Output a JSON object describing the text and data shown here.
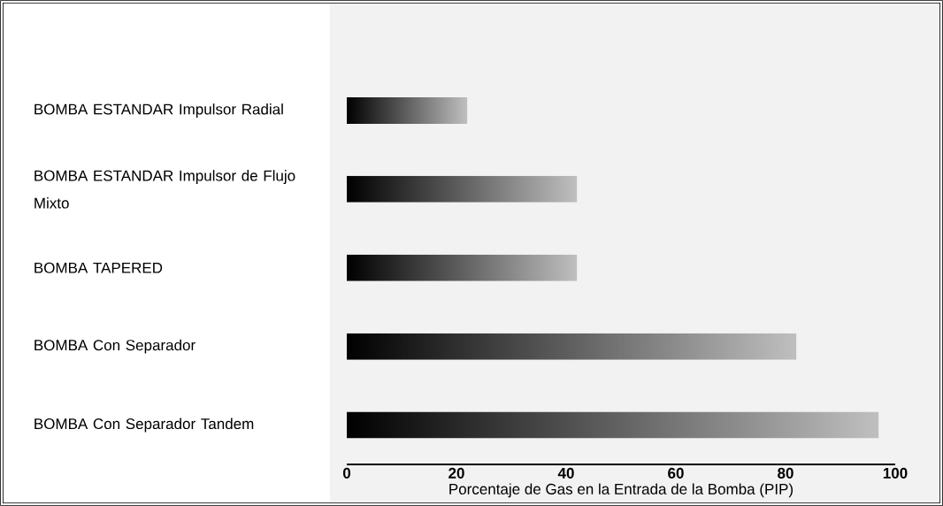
{
  "chart_data": {
    "type": "bar",
    "orientation": "horizontal",
    "categories": [
      "BOMBA ESTANDAR Impulsor Radial",
      "BOMBA ESTANDAR Impulsor de Flujo Mixto",
      "BOMBA TAPERED",
      "BOMBA Con Separador",
      "BOMBA Con Separador Tandem"
    ],
    "values": [
      22,
      42,
      42,
      82,
      97
    ],
    "color": "#000000",
    "xlabel": "Porcentaje de Gas en la Entrada de la Bomba (PIP)",
    "xlim": [
      0,
      100
    ],
    "xticks": [
      0,
      20,
      40,
      60,
      80,
      100
    ]
  }
}
